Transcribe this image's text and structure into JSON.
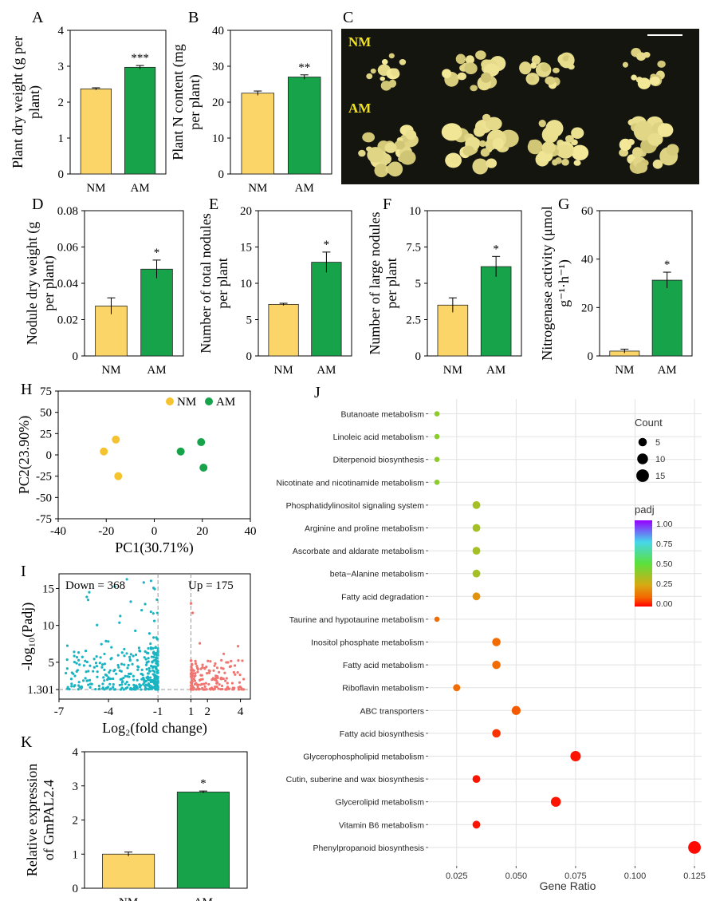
{
  "chart_data": {
    "A": {
      "panel": "A",
      "type": "bar",
      "categories": [
        "NM",
        "AM"
      ],
      "values": [
        2.37,
        2.97
      ],
      "errors": [
        0.03,
        0.05
      ],
      "ylim": [
        0,
        4
      ],
      "yticks": [
        "0",
        "1",
        "2",
        "3",
        "4"
      ],
      "ylabel": [
        "Plant dry weight (g per",
        "plant)"
      ],
      "sig": "***",
      "sig_index": 1
    },
    "B": {
      "panel": "B",
      "type": "bar",
      "categories": [
        "NM",
        "AM"
      ],
      "values": [
        22.5,
        27.0
      ],
      "errors": [
        0.6,
        0.6
      ],
      "ylim": [
        0,
        40
      ],
      "yticks": [
        "0",
        "10",
        "20",
        "30",
        "40"
      ],
      "ylabel": [
        "Plant N content (mg",
        "per plant)"
      ],
      "sig": "**",
      "sig_index": 1
    },
    "C": {
      "panel": "C",
      "type": "photo",
      "labels": [
        "NM",
        "AM"
      ]
    },
    "D": {
      "panel": "D",
      "type": "bar",
      "categories": [
        "NM",
        "AM"
      ],
      "values": [
        0.0275,
        0.0478
      ],
      "errors": [
        0.0045,
        0.005
      ],
      "ylim": [
        0,
        0.08
      ],
      "yticks": [
        "0",
        "0.02",
        "0.04",
        "0.06",
        "0.08"
      ],
      "ylabel": [
        "Nodule dry weight (g",
        "per plant)"
      ],
      "sig": "*",
      "sig_index": 1
    },
    "E": {
      "panel": "E",
      "type": "bar",
      "categories": [
        "NM",
        "AM"
      ],
      "values": [
        7.1,
        12.9
      ],
      "errors": [
        0.15,
        1.4
      ],
      "ylim": [
        0,
        20
      ],
      "yticks": [
        "0",
        "5",
        "10",
        "15",
        "20"
      ],
      "ylabel": [
        "Number of total nodules",
        "per plant"
      ],
      "sig": "*",
      "sig_index": 1
    },
    "F": {
      "panel": "F",
      "type": "bar",
      "categories": [
        "NM",
        "AM"
      ],
      "values": [
        3.5,
        6.15
      ],
      "errors": [
        0.5,
        0.7
      ],
      "ylim": [
        0,
        10
      ],
      "yticks": [
        "0",
        "2.5",
        "5",
        "7.5",
        "10"
      ],
      "ylabel": [
        "Number of large nodules",
        "per plant"
      ],
      "sig": "*",
      "sig_index": 1
    },
    "G": {
      "panel": "G",
      "type": "bar",
      "categories": [
        "NM",
        "AM"
      ],
      "values": [
        2.0,
        31.3
      ],
      "errors": [
        0.8,
        3.3
      ],
      "ylim": [
        0,
        60
      ],
      "yticks": [
        "0",
        "20",
        "40",
        "60"
      ],
      "ylabel": [
        "Nitrogenase activity (μmol",
        "g⁻¹·h⁻¹)"
      ],
      "sig": "*",
      "sig_index": 1
    },
    "H": {
      "panel": "H",
      "type": "scatter",
      "xlabel": "PC1(30.71%)",
      "ylabel": "PC2(23.90%)",
      "xlim": [
        -40,
        40
      ],
      "ylim": [
        -75,
        75
      ],
      "xticks": [
        "-40",
        "-20",
        "0",
        "20",
        "40"
      ],
      "yticks": [
        "-75",
        "-50",
        "-25",
        "0",
        "25",
        "50",
        "75"
      ],
      "series": [
        {
          "name": "NM",
          "color": "#f5c230",
          "points": [
            [
              -21,
              4
            ],
            [
              -16,
              18
            ],
            [
              -15,
              -25
            ]
          ]
        },
        {
          "name": "AM",
          "color": "#16a34a",
          "points": [
            [
              11,
              4
            ],
            [
              19.5,
              15
            ],
            [
              20.5,
              -15
            ]
          ]
        }
      ]
    },
    "I": {
      "panel": "I",
      "type": "volcano",
      "xlabel": "Log₂(fold change)",
      "ylabel": "-log₁₀(Padj)",
      "down_label": "Down = 368",
      "up_label": "Up = 175",
      "xticks": [
        "-7",
        "-4",
        "-1",
        "1",
        "2",
        "4"
      ],
      "yticks": [
        "15",
        "10",
        "5",
        "1.301"
      ],
      "xlim": [
        -7,
        4.6
      ],
      "ylim": [
        0,
        17
      ],
      "threshold_y": 1.301,
      "threshold_x": [
        -1,
        1
      ],
      "down_color": "#1ab3c2",
      "up_color": "#f07470",
      "down_count": 368,
      "up_count": 175
    },
    "J": {
      "panel": "J",
      "type": "bubble",
      "xlabel": "Gene Ratio",
      "xlim": [
        0.013,
        0.128
      ],
      "xticks": [
        "0.025",
        "0.050",
        "0.075",
        "0.100",
        "0.125"
      ],
      "pathways": [
        "Butanoate metabolism",
        "Linoleic acid metabolism",
        "Diterpenoid biosynthesis",
        "Nicotinate and nicotinamide metabolism",
        "Phosphatidylinositol signaling system",
        "Arginine and proline metabolism",
        "Ascorbate and aldarate metabolism",
        "beta−Alanine metabolism",
        "Fatty acid degradation",
        "Taurine and hypotaurine metabolism",
        "Inositol phosphate metabolism",
        "Fatty acid metabolism",
        "Riboflavin metabolism",
        "ABC transporters",
        "Fatty acid biosynthesis",
        "Glycerophospholipid metabolism",
        "Cutin, suberine and wax biosynthesis",
        "Glycerolipid metabolism",
        "Vitamin B6 metabolism",
        "Phenylpropanoid biosynthesis"
      ],
      "gene_ratio": [
        0.0167,
        0.0167,
        0.0167,
        0.0167,
        0.0333,
        0.0333,
        0.0333,
        0.0333,
        0.0333,
        0.0167,
        0.0417,
        0.0417,
        0.025,
        0.05,
        0.0417,
        0.075,
        0.0333,
        0.0667,
        0.0333,
        0.125
      ],
      "count": [
        1,
        1,
        1,
        1,
        4,
        4,
        4,
        4,
        4,
        1,
        5,
        5,
        3,
        6,
        5,
        9,
        4,
        8,
        4,
        15
      ],
      "padj": [
        0.4,
        0.4,
        0.4,
        0.4,
        0.35,
        0.35,
        0.35,
        0.35,
        0.2,
        0.12,
        0.12,
        0.12,
        0.12,
        0.09,
        0.05,
        0.02,
        0.02,
        0.02,
        0.02,
        0.01
      ],
      "legend_count_title": "Count",
      "legend_count_values": [
        "5",
        "10",
        "15"
      ],
      "legend_padj_title": "padj",
      "legend_padj_ticks": [
        "1.00",
        "0.75",
        "0.50",
        "0.25",
        "0.00"
      ]
    },
    "K": {
      "panel": "K",
      "type": "bar",
      "categories": [
        "NM",
        "AM"
      ],
      "values": [
        1.0,
        2.82
      ],
      "errors": [
        0.06,
        0.03
      ],
      "ylim": [
        0,
        4
      ],
      "yticks": [
        "0",
        "1",
        "2",
        "3",
        "4"
      ],
      "ylabel": [
        "Relative expression",
        "of GmPAL2.4"
      ],
      "sig": "*",
      "sig_index": 1
    }
  },
  "colors": {
    "nm": "#fcd568",
    "am": "#16a34a",
    "photo_bg": "#15150f",
    "photo_label": "#f2e31a"
  }
}
